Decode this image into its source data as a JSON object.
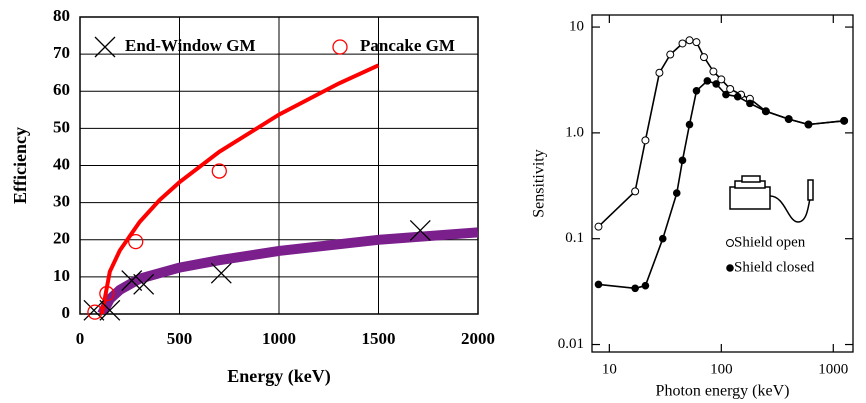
{
  "chart_data": [
    {
      "type": "scatter",
      "x_label": "Energy (keV)",
      "y_label": "Efficiency",
      "xlim": [
        0,
        2000
      ],
      "xticks": [
        0,
        500,
        1000,
        1500,
        2000
      ],
      "ylim": [
        0,
        80
      ],
      "yticks": [
        0,
        10,
        20,
        30,
        40,
        50,
        60,
        70,
        80
      ],
      "grid": true,
      "legend": "top",
      "series": [
        {
          "name": "End-Window GM",
          "color": "#000000",
          "marker": "x",
          "x": [
            70,
            150,
            260,
            320,
            710,
            1710
          ],
          "values": [
            1,
            1,
            9,
            8,
            11,
            22.5
          ],
          "fit": {
            "color": "#7a1f8c",
            "x": [
              110,
              150,
              200,
              300,
              500,
              700,
              1000,
              1500,
              2000
            ],
            "values": [
              0,
              4,
              6.5,
              9.5,
              12.5,
              14.5,
              17,
              20,
              22
            ]
          }
        },
        {
          "name": "Pancake GM",
          "color": "#ff0000",
          "marker": "o",
          "x": [
            75,
            135,
            280,
            700
          ],
          "values": [
            0.5,
            5.5,
            19.5,
            38.5
          ],
          "fit": {
            "color": "#ff0000",
            "x": [
              110,
              150,
              200,
              300,
              400,
              500,
              700,
              1000,
              1300,
              1500
            ],
            "values": [
              0,
              11.4,
              17.1,
              24.8,
              30.7,
              35.5,
              43.7,
              53.7,
              62.1,
              67
            ]
          }
        }
      ]
    },
    {
      "type": "line",
      "x_label": "Photon energy (keV)",
      "y_label": "Sensitivity",
      "xscale": "log",
      "yscale": "log",
      "xlim": [
        7,
        1500
      ],
      "xticks": [
        10,
        100,
        1000
      ],
      "ylim": [
        0.0085,
        13
      ],
      "yticks": [
        0.01,
        0.1,
        {
          "value": 1,
          "label": "1.0"
        },
        10
      ],
      "grid": false,
      "legend": "center-right",
      "series": [
        {
          "name": "Shield open",
          "color": "#000000",
          "marker": "open",
          "x": [
            8,
            17,
            21,
            28,
            35,
            45,
            52,
            60,
            70,
            85,
            100,
            120,
            150,
            180,
            250,
            400,
            600,
            1250
          ],
          "values": [
            0.13,
            0.28,
            0.85,
            3.7,
            5.5,
            7,
            7.5,
            7.2,
            5.2,
            3.8,
            3.2,
            2.6,
            2.3,
            2.1,
            1.6,
            1.35,
            1.2,
            1.3
          ]
        },
        {
          "name": "Shield closed",
          "color": "#000000",
          "marker": "filled",
          "x": [
            8,
            17,
            21,
            30,
            40,
            45,
            52,
            60,
            75,
            90,
            110,
            140,
            180,
            250,
            400,
            600,
            1250
          ],
          "values": [
            0.037,
            0.034,
            0.036,
            0.1,
            0.27,
            0.55,
            1.2,
            2.5,
            3.1,
            2.9,
            2.3,
            2.2,
            1.9,
            1.6,
            1.35,
            1.2,
            1.3
          ]
        }
      ]
    }
  ]
}
